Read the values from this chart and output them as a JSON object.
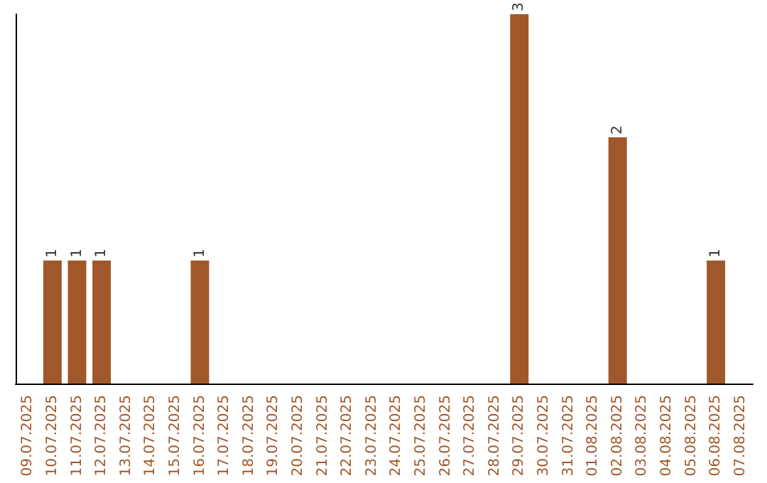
{
  "chart_data": {
    "type": "bar",
    "categories": [
      "09.07.2025",
      "10.07.2025",
      "11.07.2025",
      "12.07.2025",
      "13.07.2025",
      "14.07.2025",
      "15.07.2025",
      "16.07.2025",
      "17.07.2025",
      "18.07.2025",
      "19.07.2025",
      "20.07.2025",
      "21.07.2025",
      "22.07.2025",
      "23.07.2025",
      "24.07.2025",
      "25.07.2025",
      "26.07.2025",
      "27.07.2025",
      "28.07.2025",
      "29.07.2025",
      "30.07.2025",
      "31.07.2025",
      "01.08.2025",
      "02.08.2025",
      "03.08.2025",
      "04.08.2025",
      "05.08.2025",
      "06.08.2025",
      "07.08.2025"
    ],
    "values": [
      0,
      1,
      1,
      1,
      0,
      0,
      0,
      1,
      0,
      0,
      0,
      0,
      0,
      0,
      0,
      0,
      0,
      0,
      0,
      0,
      3,
      0,
      0,
      0,
      2,
      0,
      0,
      0,
      1,
      0
    ],
    "value_labels": [
      null,
      "1",
      "1",
      "1",
      null,
      null,
      null,
      "1",
      null,
      null,
      null,
      null,
      null,
      null,
      null,
      null,
      null,
      null,
      null,
      null,
      "3",
      null,
      null,
      null,
      "2",
      null,
      null,
      null,
      "1",
      null
    ],
    "color": "#a0582b",
    "grid": false,
    "tick_labels": "x"
  }
}
